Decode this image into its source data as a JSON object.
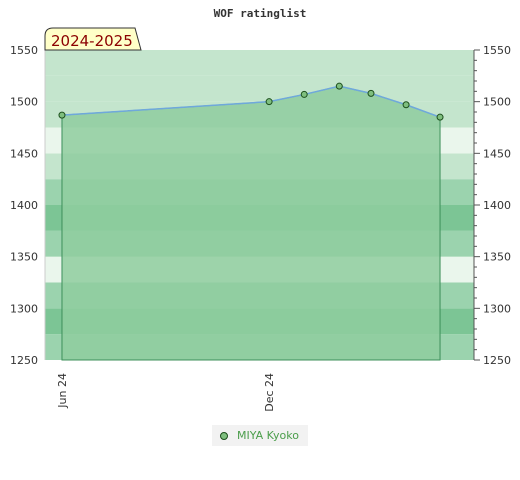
{
  "chart_data": {
    "type": "area",
    "title": "WOF ratinglist",
    "season_label": "2024-2025",
    "xlabel": "",
    "ylabel": "",
    "ylim": [
      1250,
      1550
    ],
    "y_ticks": [
      1250,
      1300,
      1350,
      1400,
      1450,
      1500,
      1550
    ],
    "x_ticks": [
      {
        "label": "Jun 24",
        "x": "2024-06-01"
      },
      {
        "label": "Dec 24",
        "x": "2024-12-01"
      }
    ],
    "xlim": [
      "2024-05-17",
      "2025-05-31"
    ],
    "grid": true,
    "legend_position": "bottom",
    "colors": {
      "area_fill": "#8fcc9f",
      "line": "#6fa8dc",
      "marker_fill": "#7fbf7f",
      "marker_stroke": "#1c4f1c",
      "band_dark": "#7cc595",
      "band_mid": "#9bd3ae",
      "band_light": "#c4e5cd",
      "band_pale": "#eaf6ec"
    },
    "series": [
      {
        "name": "MIYA Kyoko",
        "x": [
          "2024-06-01",
          "2024-12-01",
          "2025-01-01",
          "2025-02-01",
          "2025-03-01",
          "2025-04-01",
          "2025-05-01"
        ],
        "values": [
          1487,
          1500,
          1507,
          1515,
          1508,
          1497,
          1485
        ]
      }
    ]
  }
}
